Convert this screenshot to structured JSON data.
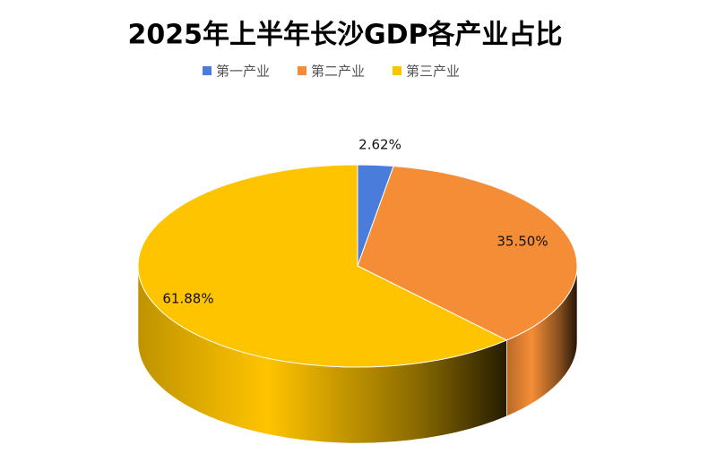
{
  "chart_data": {
    "type": "pie",
    "title": "2025年上半年长沙GDP各产业占比",
    "categories": [
      "第一产业",
      "第二产业",
      "第三产业"
    ],
    "values": [
      2.62,
      35.5,
      61.88
    ],
    "value_labels": [
      "2.62%",
      "35.50%",
      "61.88%"
    ],
    "colors": [
      "#4a7ddb",
      "#f58d36",
      "#ffc400"
    ],
    "legend": "top"
  }
}
